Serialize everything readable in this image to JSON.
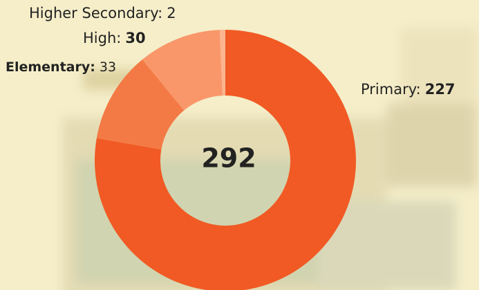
{
  "chart_data": {
    "type": "donut",
    "categories": [
      "Primary:",
      "Elementary:",
      "High:",
      "Higher Secondary:"
    ],
    "values": [
      227,
      33,
      30,
      2
    ],
    "colors": [
      "#f15a24",
      "#f47a45",
      "#f9976b",
      "#fbb48f"
    ],
    "bold_values": [
      true,
      false,
      true,
      false
    ],
    "total": 292
  }
}
